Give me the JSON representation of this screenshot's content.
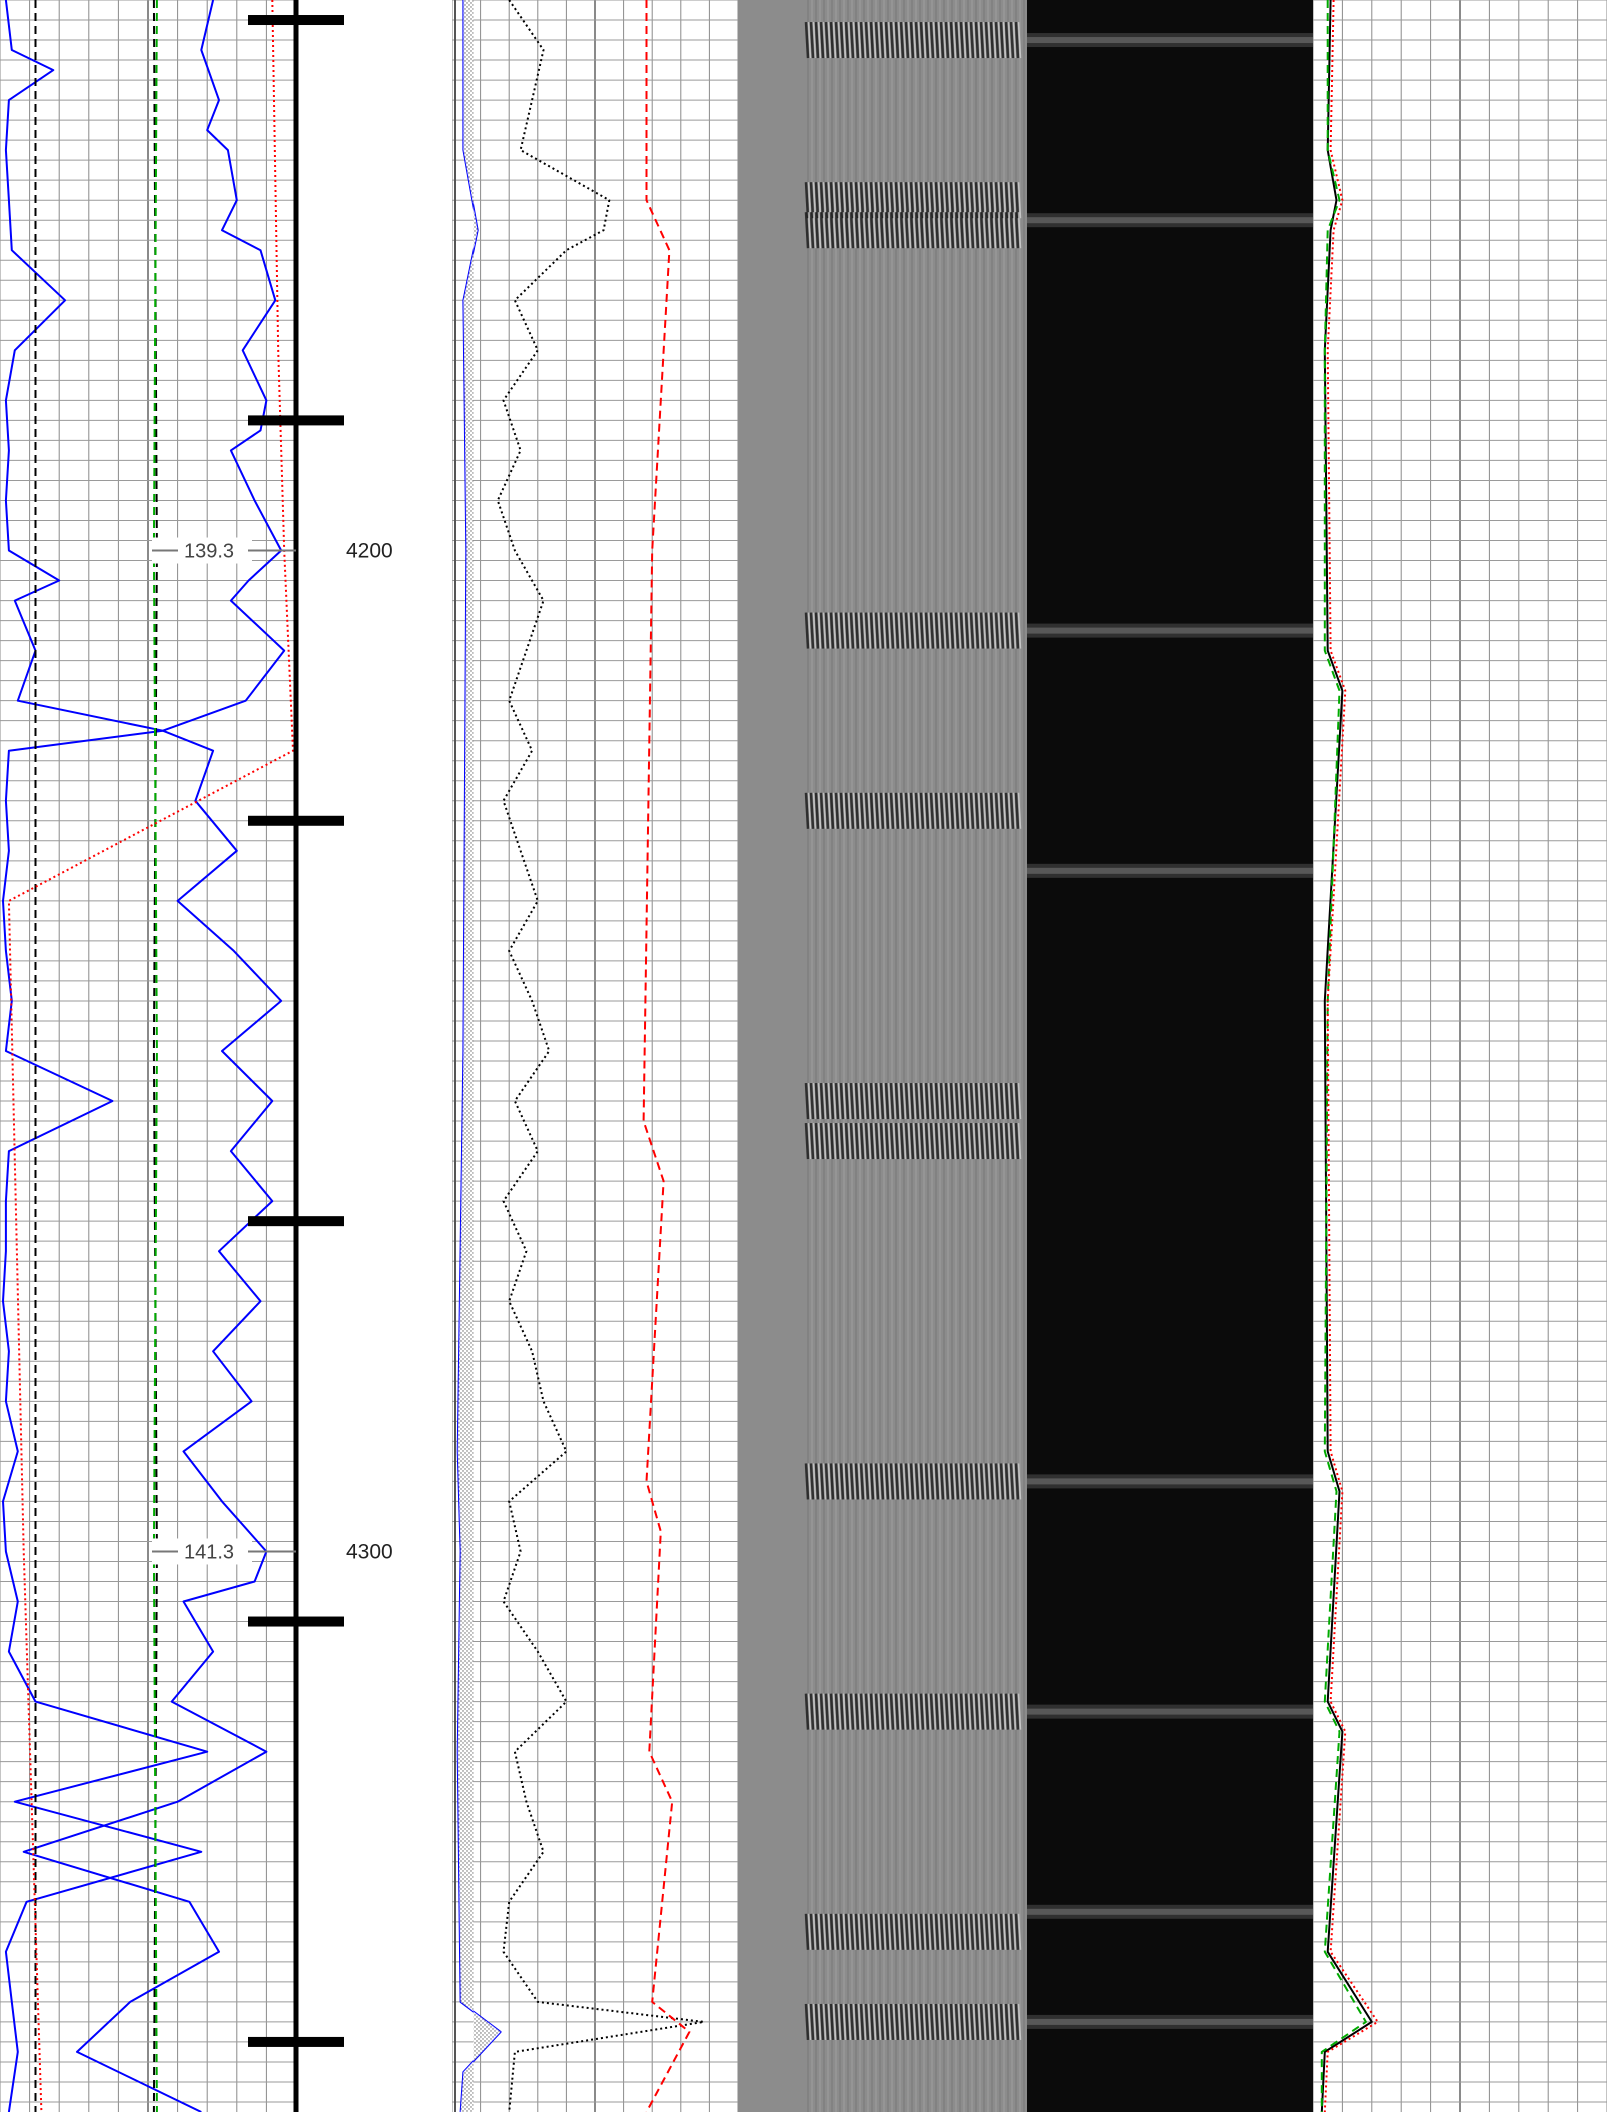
{
  "chart_data": {
    "type": "line",
    "title": "",
    "depth_range": [
      4145,
      4356
    ],
    "depth_labels": [
      {
        "depth": 4200,
        "label": "4200",
        "annotation": "139.3"
      },
      {
        "depth": 4300,
        "label": "4300",
        "annotation": "141.3"
      }
    ],
    "depth_tick_marks": [
      4147,
      4187,
      4227,
      4267,
      4307,
      4349
    ],
    "tracks": [
      {
        "name": "track-1",
        "grid": true,
        "series": [
          {
            "color": "#0000ff",
            "style": "solid",
            "depth": [
              4145,
              4150,
              4155,
              4158,
              4160,
              4165,
              4168,
              4170,
              4175,
              4180,
              4185,
              4188,
              4190,
              4195,
              4200,
              4203,
              4205,
              4210,
              4215,
              4218,
              4220,
              4225,
              4230,
              4235,
              4240,
              4245,
              4250,
              4255,
              4260,
              4265,
              4270,
              4275,
              4280,
              4285,
              4290,
              4295,
              4300,
              4303,
              4305,
              4310,
              4315,
              4320,
              4325,
              4330,
              4335,
              4340,
              4345,
              4350,
              4356
            ],
            "value": [
              0.72,
              0.68,
              0.74,
              0.7,
              0.77,
              0.8,
              0.75,
              0.88,
              0.93,
              0.82,
              0.9,
              0.88,
              0.78,
              0.86,
              0.95,
              0.84,
              0.78,
              0.96,
              0.83,
              0.55,
              0.72,
              0.66,
              0.8,
              0.6,
              0.79,
              0.95,
              0.75,
              0.92,
              0.78,
              0.92,
              0.74,
              0.88,
              0.72,
              0.85,
              0.62,
              0.75,
              0.9,
              0.86,
              0.62,
              0.72,
              0.58,
              0.9,
              0.6,
              0.08,
              0.64,
              0.74,
              0.44,
              0.26,
              0.68
            ]
          },
          {
            "color": "#0000ff",
            "style": "solid",
            "left_wrap": true,
            "depth": [
              4145,
              4150,
              4152,
              4155,
              4160,
              4165,
              4170,
              4175,
              4180,
              4185,
              4190,
              4195,
              4200,
              4203,
              4205,
              4210,
              4215,
              4218,
              4220,
              4225,
              4230,
              4235,
              4240,
              4245,
              4250,
              4255,
              4260,
              4265,
              4270,
              4275,
              4280,
              4285,
              4290,
              4295,
              4300,
              4305,
              4310,
              4315,
              4320,
              4325,
              4330,
              4335,
              4340,
              4345,
              4350,
              4356
            ],
            "value": [
              0.02,
              0.04,
              0.18,
              0.03,
              0.02,
              0.03,
              0.04,
              0.22,
              0.05,
              0.02,
              0.03,
              0.02,
              0.03,
              0.2,
              0.05,
              0.12,
              0.06,
              0.55,
              0.03,
              0.02,
              0.03,
              0.01,
              0.02,
              0.04,
              0.02,
              0.38,
              0.03,
              0.02,
              0.02,
              0.01,
              0.03,
              0.02,
              0.06,
              0.01,
              0.02,
              0.06,
              0.03,
              0.12,
              0.7,
              0.05,
              0.68,
              0.09,
              0.02,
              0.04,
              0.06,
              0.03
            ]
          },
          {
            "color": "#000000",
            "style": "dashed",
            "depth": [
              4145,
              4356
            ],
            "value": [
              0.12,
              0.12
            ]
          },
          {
            "color": "#000000",
            "style": "dashed",
            "depth": [
              4145,
              4200,
              4250,
              4300,
              4356
            ],
            "value": [
              0.52,
              0.53,
              0.52,
              0.53,
              0.52
            ]
          },
          {
            "color": "#00aa00",
            "style": "dashed",
            "depth": [
              4145,
              4200,
              4250,
              4300,
              4356
            ],
            "value": [
              0.53,
              0.52,
              0.53,
              0.52,
              0.53
            ]
          },
          {
            "color": "#ff0000",
            "style": "dotted",
            "depth": [
              4145,
              4180,
              4200,
              4220,
              4235,
              4300,
              4356
            ],
            "value": [
              0.92,
              0.94,
              0.96,
              0.99,
              0.03,
              0.08,
              0.14
            ]
          }
        ]
      },
      {
        "name": "track-2",
        "grid": true,
        "series": [
          {
            "color": "#0000ff",
            "style": "solid",
            "depth": [
              4145,
              4160,
              4168,
              4175,
              4200,
              4250,
              4290,
              4300,
              4320,
              4345,
              4348,
              4352,
              4356
            ],
            "value": [
              0.04,
              0.04,
              0.09,
              0.04,
              0.05,
              0.04,
              0.02,
              0.03,
              0.02,
              0.03,
              0.17,
              0.04,
              0.03
            ]
          },
          {
            "color": "#000000",
            "style": "dotted",
            "depth": [
              4145,
              4150,
              4155,
              4160,
              4165,
              4168,
              4170,
              4175,
              4180,
              4185,
              4190,
              4195,
              4200,
              4205,
              4210,
              4215,
              4220,
              4225,
              4230,
              4235,
              4240,
              4245,
              4250,
              4255,
              4260,
              4265,
              4270,
              4275,
              4280,
              4285,
              4290,
              4295,
              4300,
              4305,
              4310,
              4315,
              4320,
              4325,
              4330,
              4335,
              4340,
              4345,
              4347,
              4350,
              4356
            ],
            "value": [
              0.2,
              0.32,
              0.28,
              0.24,
              0.55,
              0.53,
              0.4,
              0.22,
              0.3,
              0.18,
              0.24,
              0.16,
              0.22,
              0.32,
              0.26,
              0.2,
              0.28,
              0.18,
              0.24,
              0.3,
              0.2,
              0.28,
              0.34,
              0.22,
              0.3,
              0.18,
              0.26,
              0.2,
              0.28,
              0.32,
              0.4,
              0.2,
              0.24,
              0.18,
              0.3,
              0.4,
              0.22,
              0.26,
              0.32,
              0.2,
              0.18,
              0.3,
              0.88,
              0.22,
              0.2
            ]
          },
          {
            "color": "#ff0000",
            "style": "dashed",
            "depth": [
              4145,
              4165,
              4170,
              4200,
              4257,
              4263,
              4293,
              4298,
              4320,
              4325,
              4345,
              4348,
              4356
            ],
            "value": [
              0.68,
              0.68,
              0.76,
              0.7,
              0.67,
              0.74,
              0.68,
              0.73,
              0.69,
              0.77,
              0.7,
              0.83,
              0.68
            ]
          }
        ]
      },
      {
        "name": "track-3",
        "image": "waveform-variable-density",
        "bright_bands": [
          4149,
          4165,
          4168,
          4208,
          4226,
          4255,
          4259,
          4293,
          4316,
          4338,
          4347
        ]
      },
      {
        "name": "track-4",
        "image": "amplitude-map",
        "bright_bands": [
          4149,
          4167,
          4208,
          4232,
          4293,
          4316,
          4336,
          4347
        ]
      },
      {
        "name": "track-5",
        "grid": true,
        "series": [
          {
            "color": "#000000",
            "style": "solid",
            "depth": [
              4145,
              4160,
              4165,
              4168,
              4180,
              4210,
              4214,
              4245,
              4290,
              4294,
              4315,
              4318,
              4340,
              4347,
              4350,
              4356
            ],
            "value": [
              0.06,
              0.05,
              0.08,
              0.06,
              0.04,
              0.05,
              0.1,
              0.04,
              0.05,
              0.09,
              0.05,
              0.1,
              0.05,
              0.2,
              0.04,
              0.03
            ]
          },
          {
            "color": "#00aa00",
            "style": "dashed",
            "depth": [
              4145,
              4160,
              4165,
              4168,
              4180,
              4210,
              4214,
              4245,
              4290,
              4294,
              4315,
              4318,
              4340,
              4347,
              4350,
              4356
            ],
            "value": [
              0.05,
              0.05,
              0.09,
              0.05,
              0.04,
              0.04,
              0.09,
              0.05,
              0.04,
              0.08,
              0.04,
              0.09,
              0.04,
              0.18,
              0.03,
              0.03
            ]
          },
          {
            "color": "#ff0000",
            "style": "dotted",
            "depth": [
              4145,
              4160,
              4165,
              4168,
              4180,
              4210,
              4214,
              4245,
              4290,
              4294,
              4315,
              4318,
              4340,
              4347,
              4350,
              4356
            ],
            "value": [
              0.07,
              0.06,
              0.1,
              0.07,
              0.05,
              0.06,
              0.11,
              0.05,
              0.06,
              0.1,
              0.06,
              0.11,
              0.06,
              0.22,
              0.05,
              0.04
            ]
          }
        ]
      }
    ]
  }
}
